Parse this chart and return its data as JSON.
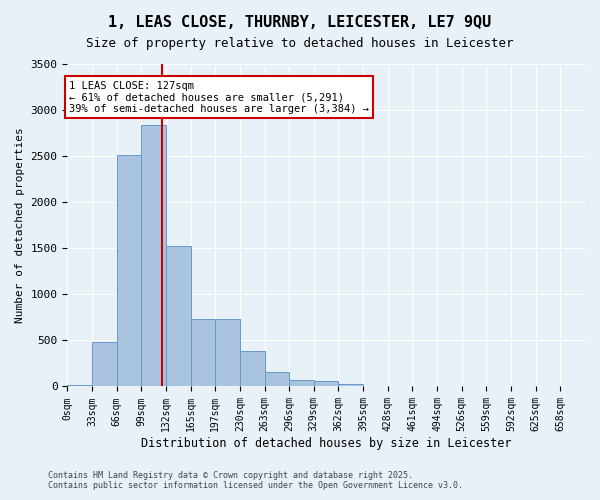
{
  "title1": "1, LEAS CLOSE, THURNBY, LEICESTER, LE7 9QU",
  "title2": "Size of property relative to detached houses in Leicester",
  "xlabel": "Distribution of detached houses by size in Leicester",
  "ylabel": "Number of detached properties",
  "bin_labels": [
    "0sqm",
    "33sqm",
    "66sqm",
    "99sqm",
    "132sqm",
    "165sqm",
    "197sqm",
    "230sqm",
    "263sqm",
    "296sqm",
    "329sqm",
    "362sqm",
    "395sqm",
    "428sqm",
    "461sqm",
    "494sqm",
    "526sqm",
    "559sqm",
    "592sqm",
    "625sqm",
    "658sqm"
  ],
  "bar_values": [
    20,
    480,
    2510,
    2840,
    1530,
    730,
    730,
    380,
    155,
    65,
    55,
    30,
    0,
    0,
    0,
    0,
    0,
    0,
    0,
    0,
    0
  ],
  "bar_color": "#aac4e0",
  "bar_edge_color": "#6699cc",
  "background_color": "#e8f0f8",
  "grid_color": "#ffffff",
  "vline_x": 127,
  "vline_color": "#cc0000",
  "annotation_title": "1 LEAS CLOSE: 127sqm",
  "annotation_line1": "← 61% of detached houses are smaller (5,291)",
  "annotation_line2": "39% of semi-detached houses are larger (3,384) →",
  "annotation_box_color": "#ffffff",
  "annotation_box_edge": "#cc0000",
  "footer1": "Contains HM Land Registry data © Crown copyright and database right 2025.",
  "footer2": "Contains public sector information licensed under the Open Government Licence v3.0.",
  "ylim": [
    0,
    3500
  ],
  "bin_width": 33
}
